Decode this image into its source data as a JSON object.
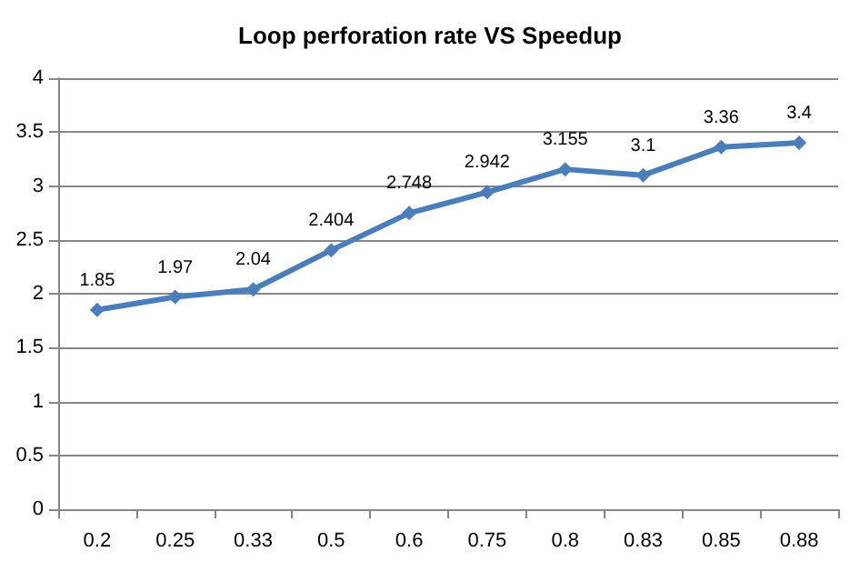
{
  "chart_data": {
    "type": "line",
    "title": "Loop perforation rate VS Speedup",
    "categories": [
      "0.2",
      "0.25",
      "0.33",
      "0.5",
      "0.6",
      "0.75",
      "0.8",
      "0.83",
      "0.85",
      "0.88"
    ],
    "series": [
      {
        "color": "#4a7ebb",
        "values": [
          1.85,
          1.97,
          2.04,
          2.404,
          2.748,
          2.942,
          3.155,
          3.1,
          3.36,
          3.4
        ]
      }
    ],
    "ylim": [
      0,
      4
    ],
    "yticks": [
      0,
      0.5,
      1,
      1.5,
      2,
      2.5,
      3,
      3.5,
      4
    ],
    "grid": "y",
    "marker": "diamond",
    "line_style": "solid",
    "data_labels": true
  }
}
